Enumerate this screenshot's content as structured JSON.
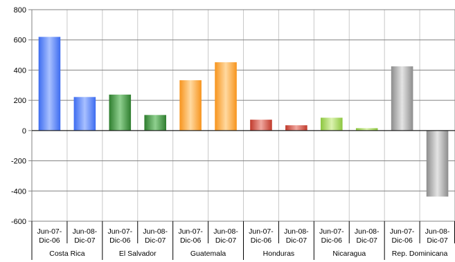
{
  "chart_data": {
    "type": "bar",
    "title": "",
    "xlabel": "",
    "ylabel": "",
    "ylim": [
      -600,
      800
    ],
    "yticks": [
      -600,
      -400,
      -200,
      0,
      200,
      400,
      600,
      800
    ],
    "ytick_labels": [
      "-600",
      "-400",
      "-200",
      "0",
      "200",
      "400",
      "600",
      "800"
    ],
    "grid": "horizontal",
    "legend": "none",
    "period_labels": [
      [
        "Jun-07-",
        "Dic-06"
      ],
      [
        "Jun-08-",
        "Dic-07"
      ]
    ],
    "groups": [
      {
        "name": "Costa Rica",
        "values": [
          620,
          222
        ],
        "color": "#3d6cf0",
        "light": "#a8c0ff"
      },
      {
        "name": "El Salvador",
        "values": [
          238,
          103
        ],
        "color": "#2e7d2e",
        "light": "#8fd08f"
      },
      {
        "name": "Guatemala",
        "values": [
          333,
          452
        ],
        "color": "#f7941d",
        "light": "#ffd9a0"
      },
      {
        "name": "Honduras",
        "values": [
          72,
          35
        ],
        "color": "#c0392b",
        "light": "#f0a8a0"
      },
      {
        "name": "Nicaragua",
        "values": [
          85,
          16
        ],
        "color": "#8cc63f",
        "light": "#dcf3b0"
      },
      {
        "name": "Rep. Dominicana",
        "values": [
          425,
          -437
        ],
        "color": "#8c8c8c",
        "light": "#e4e4e4"
      }
    ]
  }
}
